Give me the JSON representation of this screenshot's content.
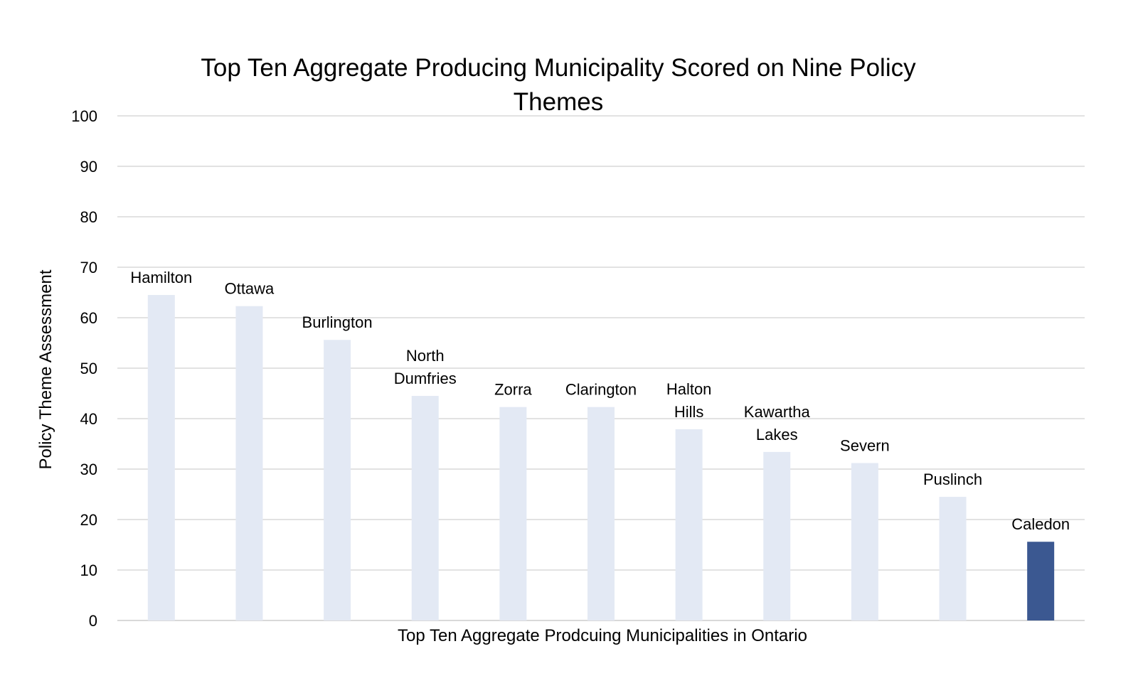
{
  "chart_data": {
    "type": "bar",
    "title_lines": [
      "Top Ten Aggregate Producing Municipality Scored on Nine Policy",
      "Themes"
    ],
    "xlabel": "Top Ten Aggregate Prodcuing Municipalities in Ontario",
    "ylabel": "Policy Theme Assessment",
    "ylim": [
      0,
      100
    ],
    "yticks": [
      "0",
      "10",
      "20",
      "30",
      "40",
      "50",
      "60",
      "70",
      "80",
      "90",
      "100"
    ],
    "grid": true,
    "categories": [
      [
        "Hamilton"
      ],
      [
        "Ottawa"
      ],
      [
        "Burlington"
      ],
      [
        "North",
        "Dumfries"
      ],
      [
        "Zorra"
      ],
      [
        "Clarington"
      ],
      [
        "Halton",
        "Hills"
      ],
      [
        "Kawartha",
        "Lakes"
      ],
      [
        "Severn"
      ],
      [
        "Puslinch"
      ],
      [
        "Caledon"
      ]
    ],
    "values": [
      64.5,
      62.3,
      55.6,
      44.5,
      42.3,
      42.3,
      37.9,
      33.4,
      31.2,
      24.5,
      15.6
    ],
    "colors": {
      "bar": "#e3e9f4",
      "highlight_bar": "#3b5891",
      "grid": "#d9d9d9"
    },
    "highlight_index": 10
  }
}
